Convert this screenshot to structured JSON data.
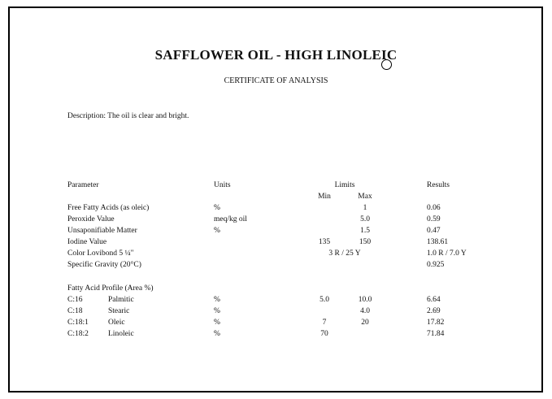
{
  "title": "SAFFLOWER OIL - HIGH LINOLEIC",
  "logo_text": "U",
  "subtitle": "CERTIFICATE OF ANALYSIS",
  "description": "Description: The oil is clear and bright.",
  "headers": {
    "parameter": "Parameter",
    "units": "Units",
    "limits": "Limits",
    "min": "Min",
    "max": "Max",
    "results": "Results"
  },
  "rows": [
    {
      "parameter": "Free Fatty Acids (as oleic)",
      "units": "%",
      "min": "",
      "max": "1",
      "result": "0.06"
    },
    {
      "parameter": "Peroxide Value",
      "units": "meq/kg oil",
      "min": "",
      "max": "5.0",
      "result": "0.59"
    },
    {
      "parameter": "Unsaponifiable Matter",
      "units": "%",
      "min": "",
      "max": "1.5",
      "result": "0.47"
    },
    {
      "parameter": "Iodine Value",
      "units": "",
      "min": "135",
      "max": "150",
      "result": "138.61"
    },
    {
      "parameter": "Color Lovibond 5  ¼\"",
      "units": "",
      "limit": "3 R / 25 Y",
      "result": "1.0 R / 7.0 Y"
    },
    {
      "parameter": "Specific Gravity (20°C)",
      "units": "",
      "min": "",
      "max": "",
      "result": "0.925"
    }
  ],
  "fatty_acid_header": "Fatty Acid Profile (Area %)",
  "fatty_acids": [
    {
      "code": "C:16",
      "name": "Palmitic",
      "units": "%",
      "min": "5.0",
      "max": "10.0",
      "result": "6.64"
    },
    {
      "code": "C:18",
      "name": "Stearic",
      "units": "%",
      "min": "",
      "max": "4.0",
      "result": "2.69"
    },
    {
      "code": "C:18:1",
      "name": "Oleic",
      "units": "%",
      "min": "7",
      "max": "20",
      "result": "17.82"
    },
    {
      "code": "C:18:2",
      "name": "Linoleic",
      "units": "%",
      "min": "70",
      "max": "",
      "result": "71.84"
    }
  ]
}
